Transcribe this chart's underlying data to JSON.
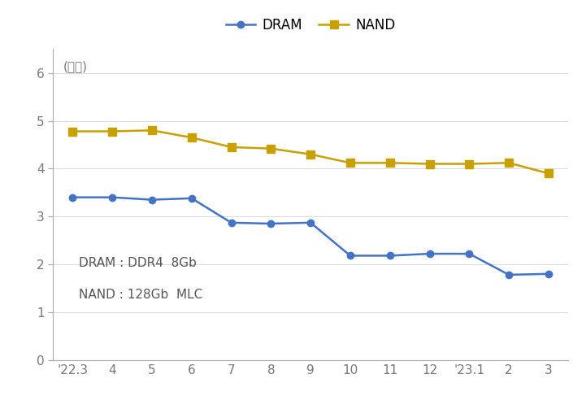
{
  "x_labels": [
    "'22.3",
    "4",
    "5",
    "6",
    "7",
    "8",
    "9",
    "10",
    "11",
    "12",
    "'23.1",
    "2",
    "3"
  ],
  "dram_values": [
    3.4,
    3.4,
    3.35,
    3.38,
    2.87,
    2.85,
    2.87,
    2.18,
    2.18,
    2.22,
    2.22,
    1.78,
    1.8
  ],
  "nand_values": [
    4.78,
    4.78,
    4.8,
    4.65,
    4.45,
    4.42,
    4.3,
    4.12,
    4.12,
    4.1,
    4.1,
    4.12,
    3.9
  ],
  "dram_color": "#4472C4",
  "nand_color": "#C8A000",
  "dram_label": "DRAM",
  "nand_label": "NAND",
  "ylabel": "(달러)",
  "ylim": [
    0,
    6.5
  ],
  "yticks": [
    0,
    1,
    2,
    3,
    4,
    5,
    6
  ],
  "annotation_line1": "DRAM : DDR4  8Gb",
  "annotation_line2": "NAND : 128Gb  MLC",
  "background_color": "#ffffff",
  "tick_fontsize": 11,
  "legend_fontsize": 12,
  "annotation_fontsize": 11,
  "ylabel_fontsize": 11,
  "tick_color": "#777777",
  "spine_color": "#aaaaaa",
  "grid_color": "#dddddd"
}
